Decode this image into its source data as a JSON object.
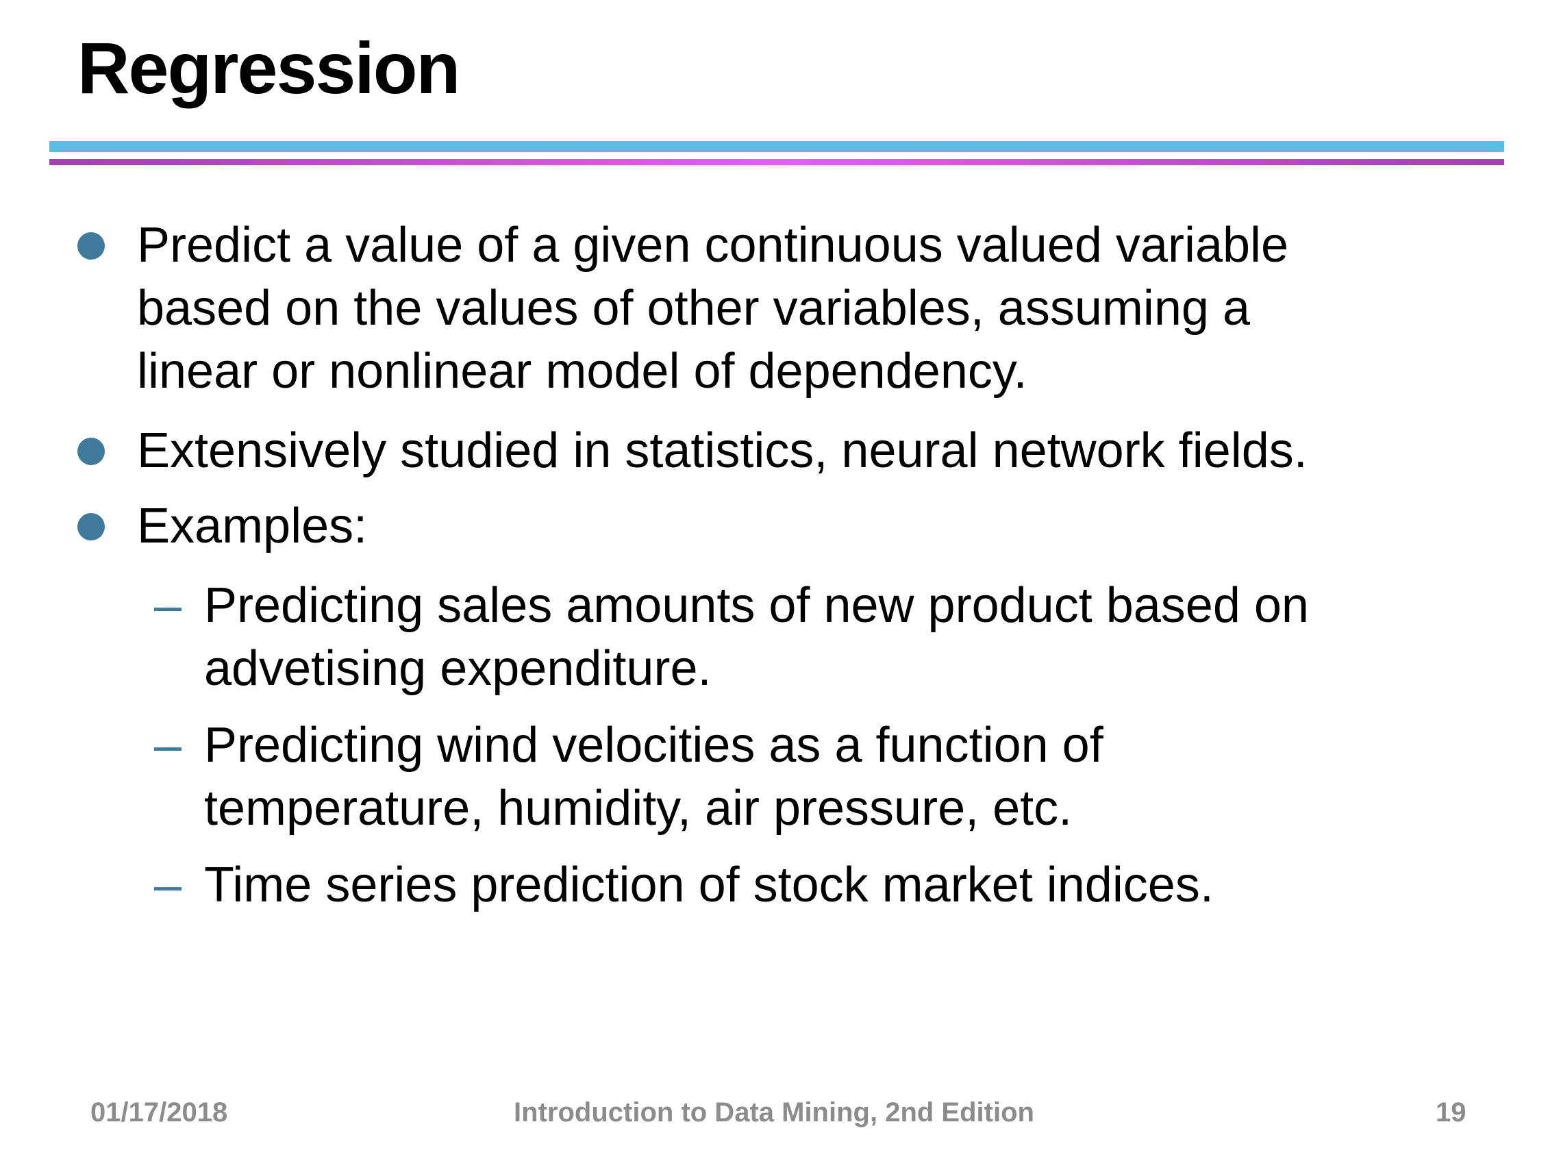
{
  "slide": {
    "title": "Regression",
    "bullets": [
      {
        "text": "Predict a value of a given continuous valued variable\nbased on the values of other variables, assuming a\nlinear or nonlinear model of dependency."
      },
      {
        "text": "Extensively studied in statistics, neural network fields."
      },
      {
        "text": "Examples:"
      }
    ],
    "sub_bullets": [
      {
        "marker": "–",
        "text": "Predicting sales amounts of new product based on\nadvetising expenditure."
      },
      {
        "marker": "–",
        "text": "Predicting wind velocities as a function of\ntemperature, humidity, air pressure, etc."
      },
      {
        "marker": "–",
        "text": "Time series prediction of stock market indices."
      }
    ]
  },
  "footer": {
    "date": "01/17/2018",
    "course": "Introduction to Data Mining, 2nd Edition",
    "page_number": "19"
  },
  "colors": {
    "bullet": "#3d7a9b",
    "rule_top": "#5bbde2",
    "rule_bottom": "#c94fd6",
    "footer_text": "#8c8c8c"
  }
}
